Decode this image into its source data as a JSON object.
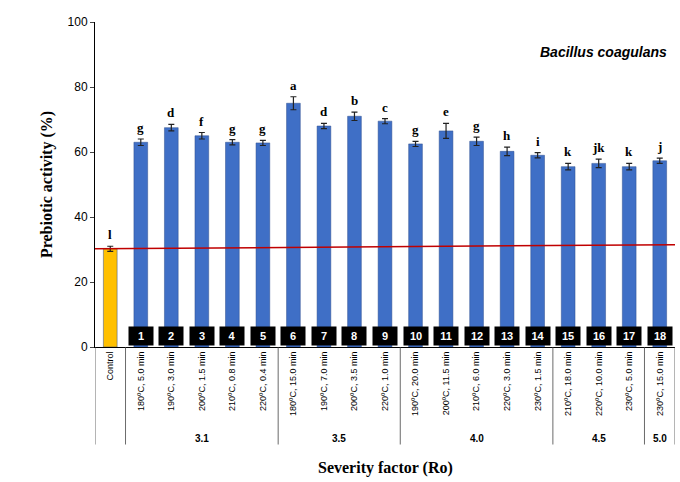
{
  "chart_data": {
    "type": "bar",
    "annotation": "Bacillus coagulans",
    "xlabel": "Severity factor (Ro)",
    "ylabel": "Prebiotic activity (%)",
    "categories": [
      "Control",
      "180ºC, 5.0 min",
      "190ºC, 3.0 min",
      "200ºC, 1.5 min",
      "210ºC, 0.8 min",
      "220ºC, 0.4 min",
      "180ºC, 15.0 min",
      "190ºC, 7.0 min",
      "200ºC, 3.5 min",
      "220ºC, 1.0 min",
      "190ºC, 20.0 min",
      "200ºC, 11.5 min",
      "210ºC, 6.0 min",
      "220ºC, 3.0 min",
      "230ºC, 1.5 min",
      "210ºC, 18.0 min",
      "220ºC, 10.0 min",
      "230ºC, 5.0 min",
      "230ºC, 15.0 min"
    ],
    "values": [
      30.2,
      63.0,
      67.5,
      65.0,
      63.0,
      62.8,
      75.0,
      68.0,
      71.0,
      69.5,
      62.5,
      66.5,
      63.3,
      60.2,
      59.0,
      55.5,
      56.5,
      55.5,
      57.3
    ],
    "errors": [
      0.8,
      1.0,
      1.0,
      1.0,
      0.8,
      0.8,
      2.0,
      0.8,
      1.3,
      0.8,
      0.8,
      2.3,
      1.3,
      1.3,
      0.8,
      1.0,
      1.3,
      1.0,
      0.8
    ],
    "letters": [
      "l",
      "g",
      "d",
      "f",
      "g",
      "g",
      "a",
      "d",
      "b",
      "c",
      "g",
      "e",
      "g",
      "h",
      "i",
      "k",
      "jk",
      "k",
      "j"
    ],
    "bar_numbers": [
      null,
      "1",
      "2",
      "3",
      "4",
      "5",
      "6",
      "7",
      "8",
      "9",
      "10",
      "11",
      "12",
      "13",
      "14",
      "15",
      "16",
      "17",
      "18"
    ],
    "groups": [
      {
        "label": "3.1",
        "count": 5
      },
      {
        "label": "3.5",
        "count": 4
      },
      {
        "label": "4.0",
        "count": 5
      },
      {
        "label": "4.5",
        "count": 3
      },
      {
        "label": "5.0",
        "count": 1
      }
    ],
    "colors": [
      "#ffc000",
      "#3f6fc6",
      "#3f6fc6",
      "#3f6fc6",
      "#3f6fc6",
      "#3f6fc6",
      "#3f6fc6",
      "#3f6fc6",
      "#3f6fc6",
      "#3f6fc6",
      "#3f6fc6",
      "#3f6fc6",
      "#3f6fc6",
      "#3f6fc6",
      "#3f6fc6",
      "#3f6fc6",
      "#3f6fc6",
      "#3f6fc6",
      "#3f6fc6"
    ],
    "reference_line": {
      "values": [
        30.2,
        31.5
      ],
      "color": "#c00000"
    },
    "ylim": [
      0,
      100
    ],
    "yticks": [
      0,
      20,
      40,
      60,
      80,
      100
    ],
    "grid": false
  }
}
